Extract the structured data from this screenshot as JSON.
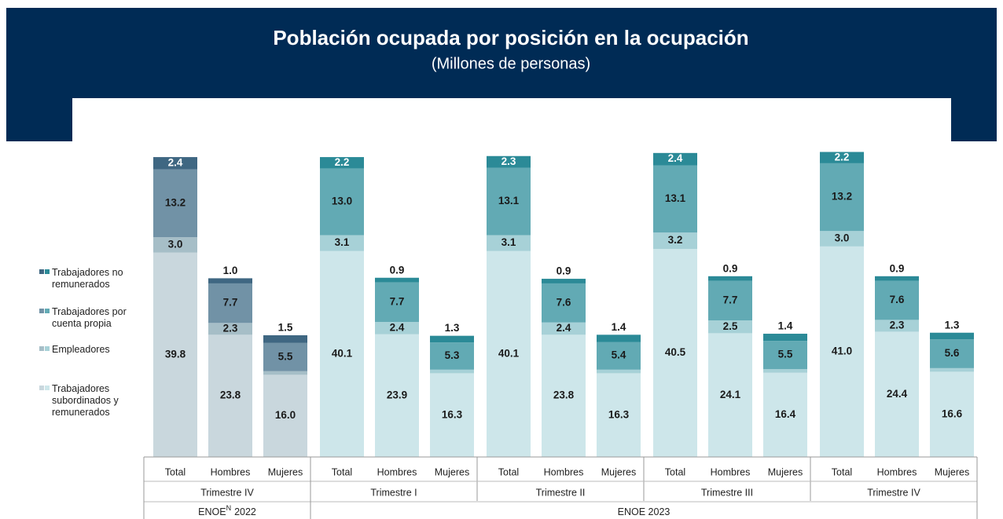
{
  "chart_data": {
    "type": "stacked_bar",
    "title": "Población ocupada por posición en la ocupación",
    "subtitle": "(Millones de personas)",
    "periods": [
      {
        "label": "ENOE",
        "superscript": "N",
        "year": "2022",
        "groups": [
          {
            "label": "Trimestre IV",
            "categories": [
              "Total",
              "Hombres",
              "Mujeres"
            ]
          }
        ]
      },
      {
        "label": "ENOE 2023",
        "groups": [
          {
            "label": "Trimestre I",
            "categories": [
              "Total",
              "Hombres",
              "Mujeres"
            ]
          },
          {
            "label": "Trimestre II",
            "categories": [
              "Total",
              "Hombres",
              "Mujeres"
            ]
          },
          {
            "label": "Trimestre III",
            "categories": [
              "Total",
              "Hombres",
              "Mujeres"
            ]
          },
          {
            "label": "Trimestre IV",
            "categories": [
              "Total",
              "Hombres",
              "Mujeres"
            ]
          }
        ]
      }
    ],
    "series": [
      {
        "name": "Trabajadores subordinados y remunerados",
        "colors": [
          "#c9d7dd",
          "#cde6ea"
        ],
        "values": [
          39.8,
          23.8,
          16.0,
          40.1,
          23.9,
          16.3,
          40.1,
          23.8,
          16.3,
          40.5,
          24.1,
          16.4,
          41.0,
          24.4,
          16.6
        ],
        "value_labels": [
          "39.8",
          "23.8",
          "16.0",
          "40.1",
          "23.9",
          "16.3",
          "40.1",
          "23.8",
          "16.3",
          "40.5",
          "24.1",
          "16.4",
          "41.0",
          "24.4",
          "16.6"
        ]
      },
      {
        "name": "Empleadores",
        "colors": [
          "#a6bec7",
          "#a7d1d7"
        ],
        "values": [
          3.0,
          2.3,
          0.7,
          3.1,
          2.4,
          0.7,
          3.1,
          2.4,
          0.7,
          3.2,
          2.5,
          0.7,
          3.0,
          2.3,
          0.7
        ],
        "value_labels": [
          "3.0",
          "2.3",
          "0.7",
          "3.1",
          "2.4",
          "0.7",
          "3.1",
          "2.4",
          "0.7",
          "3.2",
          "2.5",
          "0.7",
          "3.0",
          "2.3",
          "0.7"
        ]
      },
      {
        "name": "Trabajadores por cuenta propia",
        "colors": [
          "#7192a6",
          "#62aab4"
        ],
        "values": [
          13.2,
          7.7,
          5.5,
          13.0,
          7.7,
          5.3,
          13.1,
          7.6,
          5.4,
          13.1,
          7.7,
          5.5,
          13.2,
          7.6,
          5.6
        ],
        "value_labels": [
          "13.2",
          "7.7",
          "5.5",
          "13.0",
          "7.7",
          "5.3",
          "13.1",
          "7.6",
          "5.4",
          "13.1",
          "7.7",
          "5.5",
          "13.2",
          "7.6",
          "5.6"
        ]
      },
      {
        "name": "Trabajadores no remunerados",
        "colors": [
          "#3f6782",
          "#2b8a97"
        ],
        "values": [
          2.4,
          1.0,
          1.5,
          2.2,
          0.9,
          1.3,
          2.3,
          0.9,
          1.4,
          2.4,
          0.9,
          1.4,
          2.2,
          0.9,
          1.3
        ],
        "value_labels": [
          "2.4",
          "1.0",
          "1.5",
          "2.2",
          "0.9",
          "1.3",
          "2.3",
          "0.9",
          "1.4",
          "2.4",
          "0.9",
          "1.4",
          "2.2",
          "0.9",
          "1.3"
        ]
      }
    ]
  }
}
